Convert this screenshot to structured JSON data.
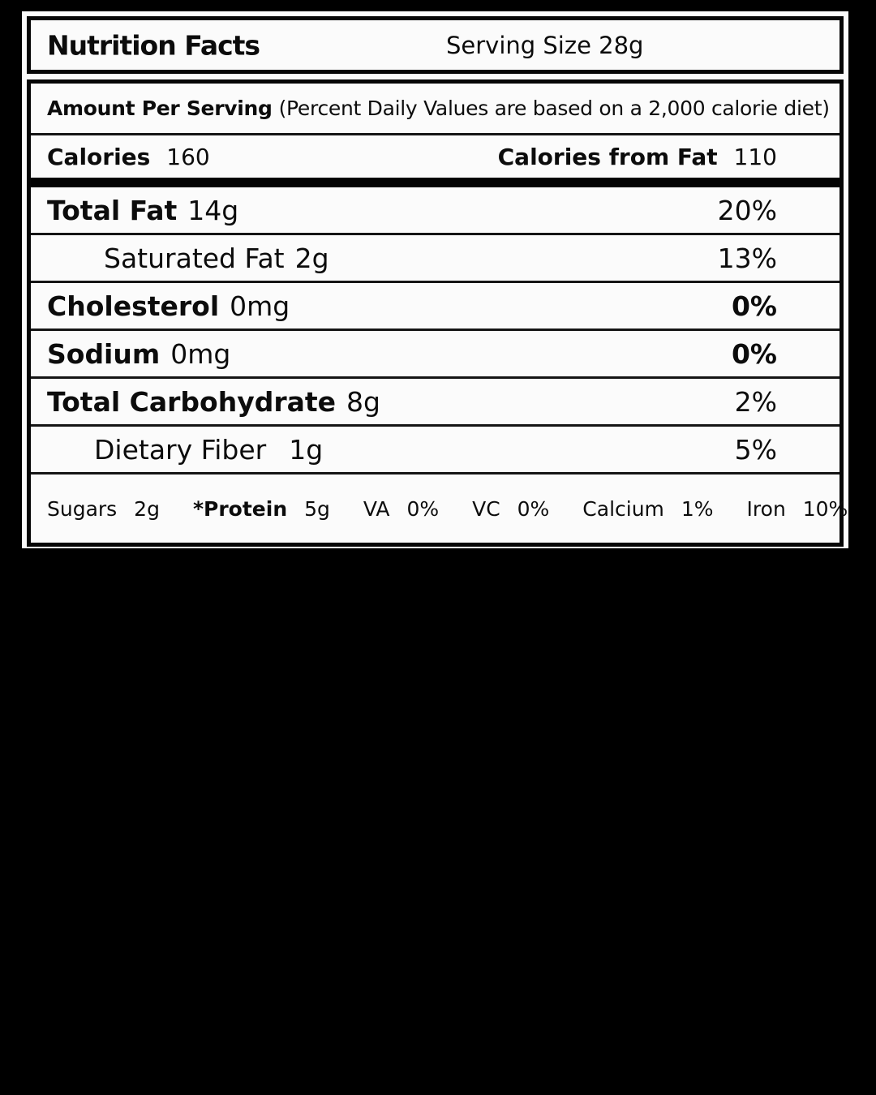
{
  "header": {
    "title": "Nutrition Facts",
    "serving_size": "Serving Size 28g"
  },
  "amount_row": {
    "label": "Amount Per Serving",
    "note": "(Percent Daily Values are based on a 2,000 calorie diet)"
  },
  "calories_row": {
    "label": "Calories",
    "value": "160",
    "fat_label": "Calories from Fat",
    "fat_value": "110"
  },
  "nutrient_rows": [
    {
      "name": "Total Fat",
      "value": "14g",
      "percent": "20%"
    },
    {
      "name": "Saturated Fat",
      "value": "2g",
      "percent": "13%"
    },
    {
      "name": "Cholesterol",
      "value": "0mg",
      "percent": "0%"
    },
    {
      "name": "Sodium",
      "value": "0mg",
      "percent": "0%"
    },
    {
      "name": "Total Carbohydrate",
      "value": "8g",
      "percent": "2%"
    },
    {
      "name": "Dietary Fiber",
      "value": "1g",
      "percent": "5%"
    }
  ],
  "footer_row": {
    "items": [
      {
        "label": "Sugars",
        "value": "2g"
      },
      {
        "label": "*Protein",
        "value": "5g"
      },
      {
        "label": "VA",
        "value": "0%"
      },
      {
        "label": "VC",
        "value": "0%"
      },
      {
        "label": "Calcium",
        "value": "1%"
      },
      {
        "label": "Iron",
        "value": "10%"
      }
    ]
  },
  "colors": {
    "page_background": "#000000",
    "label_background": "#fbfbfb",
    "text": "#0c0c0c",
    "border": "#000000"
  }
}
